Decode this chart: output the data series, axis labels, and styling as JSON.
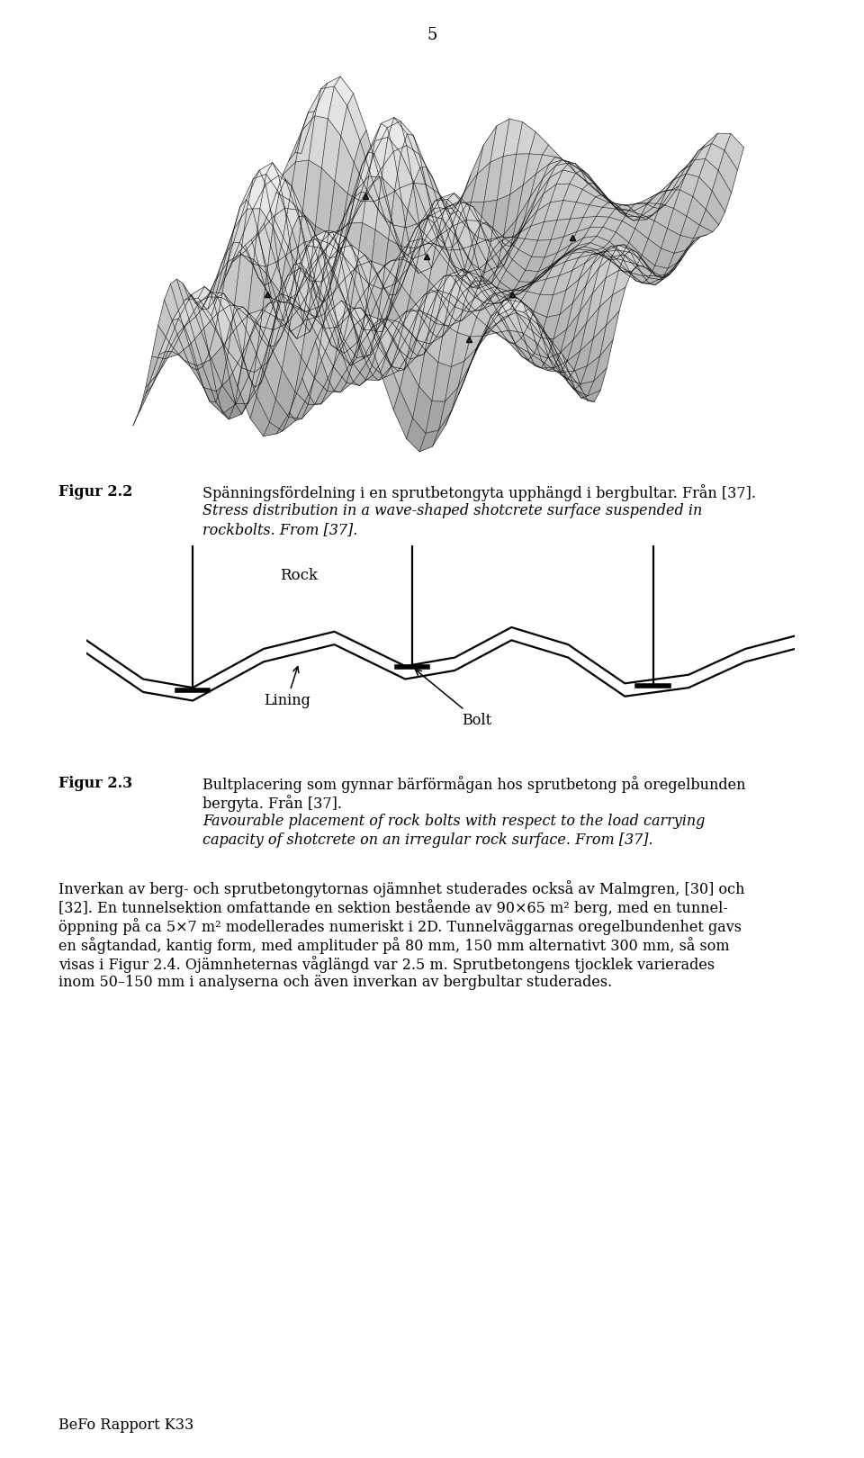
{
  "page_number": "5",
  "bg_color": "#ffffff",
  "text_color": "#1a1a1a",
  "fig22_label": "Figur 2.2",
  "fig22_text_swedish": "Spänningsfördelning i en sprutbetongyta upphängd i bergbultar. Från [37].",
  "fig22_text_english_line1": "Stress distribution in a wave-shaped shotcrete surface suspended in",
  "fig22_text_english_line2": "rockbolts. From [37].",
  "fig23_label": "Figur 2.3",
  "fig23_text_swedish_line1": "Bultplacering som gynnar bärförmågan hos sprutbetong på oregelbunden",
  "fig23_text_swedish_line2": "bergyta. Från [37].",
  "fig23_text_english_line1": "Favourable placement of rock bolts with respect to the load carrying",
  "fig23_text_english_line2": "capacity of shotcrete on an irregular rock surface. From [37].",
  "footer_text": "BeFo Rapport K33",
  "rock_label": "Rock",
  "lining_label": "Lining",
  "bolt_label": "Bolt",
  "body_line1": "Inverkan av berg- och sprutbetongytornas ojämnhet studerades också av Malmgren, [30] och",
  "body_line2": "[32]. En tunnelsektion omfattande en sektion bestående av 90×65 m² berg, med en tunnel-",
  "body_line3": "öppning på ca 5×7 m² modellerades numeriskt i 2D. Tunnelväggarnas oregelbundenhet gavs",
  "body_line4": "en sågtandad, kantig form, med amplituder på 80 mm, 150 mm alternativt 300 mm, så som",
  "body_line5": "visas i Figur 2.4. Ojämnheternas våglängd var 2.5 m. Sprutbetongens tjocklek varierades",
  "body_line6": "inom 50–150 mm i analyserna och även inverkan av bergbultar studerades."
}
